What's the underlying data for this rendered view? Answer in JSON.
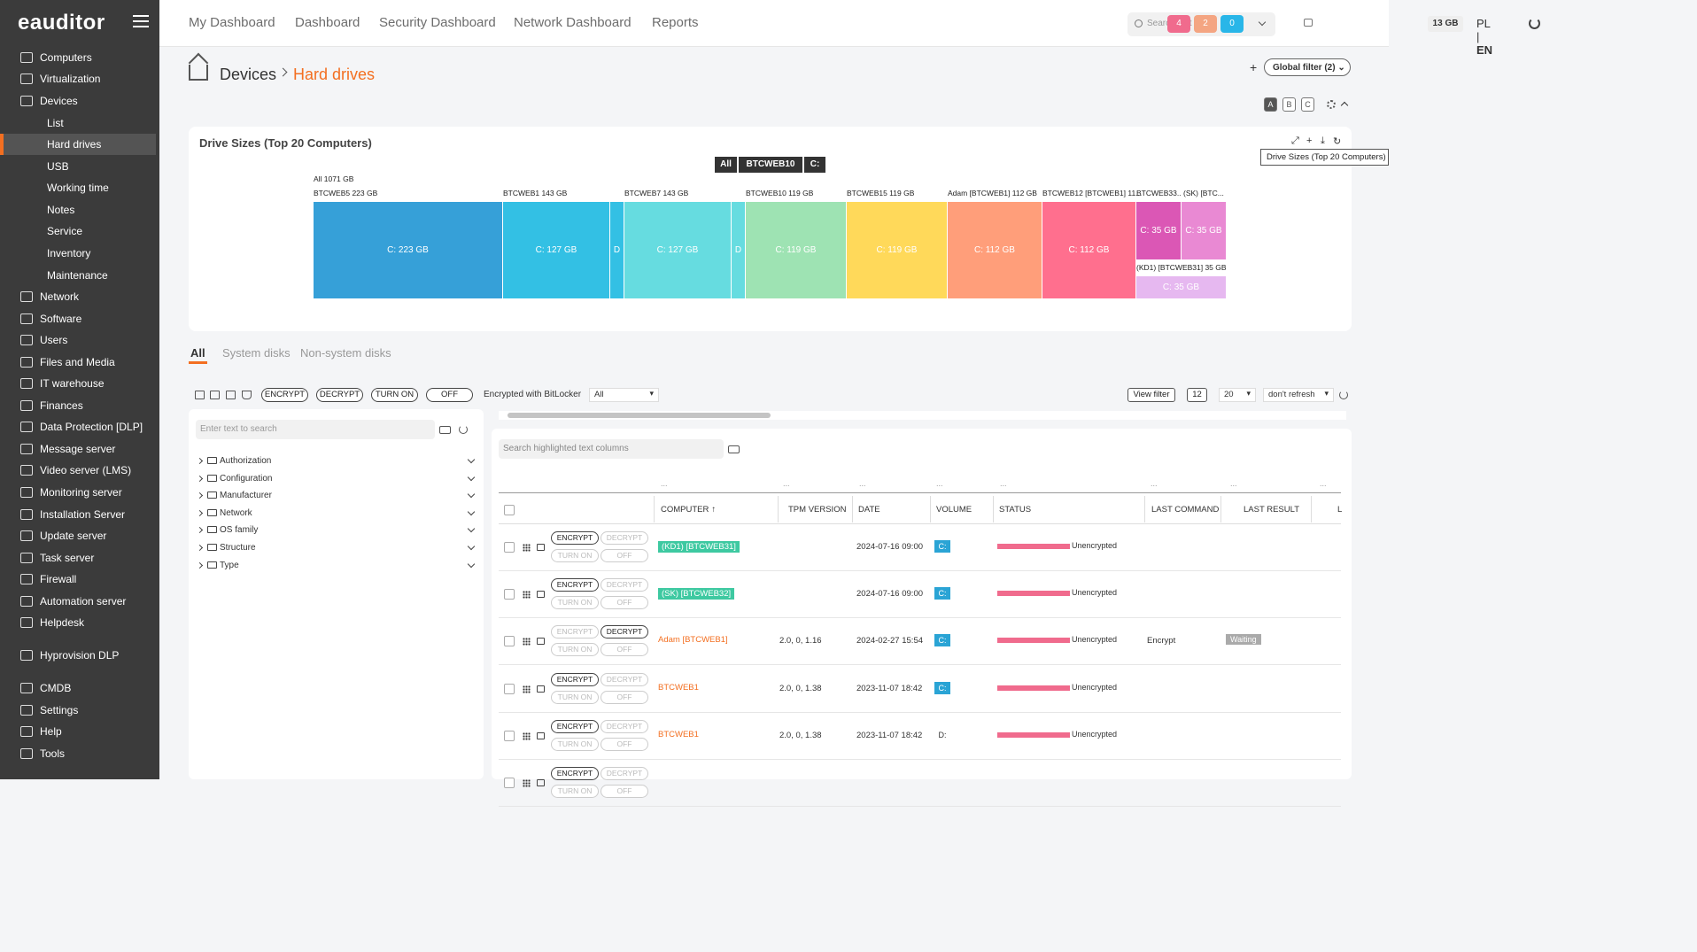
{
  "app": {
    "logo": "eauditor",
    "brand_color": "#f36f21"
  },
  "sidebar": {
    "items": [
      {
        "label": "Computers",
        "icon": "computer-icon"
      },
      {
        "label": "Virtualization",
        "icon": "server-icon"
      },
      {
        "label": "Devices",
        "icon": "devices-icon"
      },
      {
        "label": "List",
        "sub": true
      },
      {
        "label": "Hard drives",
        "sub": true,
        "active": true
      },
      {
        "label": "USB",
        "sub": true
      },
      {
        "label": "Working time",
        "sub": true
      },
      {
        "label": "Notes",
        "sub": true
      },
      {
        "label": "Service",
        "sub": true
      },
      {
        "label": "Inventory",
        "sub": true
      },
      {
        "label": "Maintenance",
        "sub": true
      },
      {
        "label": "Network",
        "icon": "network-icon"
      },
      {
        "label": "Software",
        "icon": "software-icon"
      },
      {
        "label": "Users",
        "icon": "users-icon"
      },
      {
        "label": "Files and Media",
        "icon": "files-icon"
      },
      {
        "label": "IT warehouse",
        "icon": "warehouse-icon"
      },
      {
        "label": "Finances",
        "icon": "finances-icon"
      },
      {
        "label": "Data Protection [DLP]",
        "icon": "shield-icon"
      },
      {
        "label": "Message server",
        "icon": "message-icon"
      },
      {
        "label": "Video server (LMS)",
        "icon": "video-icon"
      },
      {
        "label": "Monitoring server",
        "icon": "monitoring-icon"
      },
      {
        "label": "Installation Server",
        "icon": "installation-icon"
      },
      {
        "label": "Update server",
        "icon": "update-icon"
      },
      {
        "label": "Task server",
        "icon": "task-icon"
      },
      {
        "label": "Firewall",
        "icon": "firewall-icon"
      },
      {
        "label": "Automation server",
        "icon": "automation-icon"
      },
      {
        "label": "Helpdesk",
        "icon": "helpdesk-icon"
      },
      {
        "label": "Hyprovision DLP",
        "icon": "hyprovision-icon"
      },
      {
        "label": "CMDB",
        "icon": "cmdb-icon"
      },
      {
        "label": "Settings",
        "icon": "settings-icon"
      },
      {
        "label": "Help",
        "icon": "help-icon"
      },
      {
        "label": "Tools",
        "icon": "tools-icon"
      }
    ]
  },
  "topnav": {
    "links": [
      "My Dashboard",
      "Dashboard",
      "Security Dashboard",
      "Network Dashboard",
      "Reports"
    ],
    "search_placeholder": "Search text",
    "badges": [
      {
        "value": "4",
        "color": "#f06b8d"
      },
      {
        "value": "2",
        "color": "#f4a582"
      },
      {
        "value": "0",
        "color": "#29b6e8"
      }
    ],
    "storage": "13 GB",
    "lang_pl": "PL",
    "lang_sep": "|",
    "lang_en": "EN"
  },
  "breadcrumb": {
    "parent": "Devices",
    "current": "Hard drives"
  },
  "global_filter": "Global filter (2)",
  "view_modes": [
    "A",
    "B",
    "C"
  ],
  "chart_panel": {
    "title": "Drive Sizes (Top 20 Computers)",
    "tooltip": "Drive Sizes (Top 20 Computers)",
    "path": [
      "All",
      "BTCWEB10",
      "C:"
    ]
  },
  "chart_data": {
    "type": "treemap",
    "root_label": "All 1071 GB",
    "nodes": [
      {
        "group": "BTCWEB5 223 GB",
        "label": "C: 223 GB",
        "value": 223,
        "color": "#36a0d8"
      },
      {
        "group": "BTCWEB1 143 GB",
        "label": "C: 127 GB",
        "value": 127,
        "color": "#33c0e4"
      },
      {
        "group": "BTCWEB1 143 GB",
        "label": "D",
        "value": 16,
        "color": "#33c0e4"
      },
      {
        "group": "BTCWEB7 143 GB",
        "label": "C: 127 GB",
        "value": 127,
        "color": "#66dce0"
      },
      {
        "group": "BTCWEB7 143 GB",
        "label": "D",
        "value": 16,
        "color": "#66dce0"
      },
      {
        "group": "BTCWEB10 119 GB",
        "label": "C: 119 GB",
        "value": 119,
        "color": "#9ee3b3"
      },
      {
        "group": "BTCWEB15 119 GB",
        "label": "C: 119 GB",
        "value": 119,
        "color": "#ffd95a"
      },
      {
        "group": "Adam [BTCWEB1] 112 GB",
        "label": "C: 112 GB",
        "value": 112,
        "color": "#ff9e7a"
      },
      {
        "group": "BTCWEB12 [BTCWEB1] 11...",
        "label": "C: 112 GB",
        "value": 112,
        "color": "#ff6f8e"
      },
      {
        "group": "BTCWEB33...",
        "label": "C: 35 GB",
        "value": 35,
        "color": "#db57b5"
      },
      {
        "group": "(SK) [BTC...",
        "label": "C: 35 GB",
        "value": 35,
        "color": "#e989d3"
      },
      {
        "group": "(KD1) [BTCWEB31] 35 GB",
        "label": "C: 35 GB",
        "value": 35,
        "color": "#e6b8f0"
      }
    ]
  },
  "tabs": [
    "All",
    "System disks",
    "Non-system disks"
  ],
  "toolbar": {
    "encrypt": "ENCRYPT",
    "decrypt": "DECRYPT",
    "turn_on": "TURN ON",
    "off": "OFF",
    "bitlocker_label": "Encrypted with BitLocker",
    "bitlocker_value": "All",
    "view_filter": "View filter",
    "count": "12",
    "page_size": "20",
    "refresh_mode": "don't refresh"
  },
  "filter_panel": {
    "search_placeholder": "Enter text to search",
    "items": [
      "Authorization",
      "Configuration",
      "Manufacturer",
      "Network",
      "OS family",
      "Structure",
      "Type"
    ]
  },
  "table": {
    "search_placeholder": "Search highlighted text columns",
    "dots": "...",
    "columns": [
      "COMPUTER",
      "TPM VERSION",
      "DATE",
      "VOLUME",
      "STATUS",
      "LAST COMMAND",
      "LAST RESULT",
      "L"
    ],
    "rows": [
      {
        "computer": "(KD1) [BTCWEB31]",
        "style": "tag",
        "tpm": "",
        "date": "2024-07-16 09:00",
        "volume": "C:",
        "status": "Unencrypted",
        "last_command": "",
        "last_result": "",
        "enc_active": true,
        "dec_active": false
      },
      {
        "computer": "(SK) [BTCWEB32]",
        "style": "tag",
        "tpm": "",
        "date": "2024-07-16 09:00",
        "volume": "C:",
        "status": "Unencrypted",
        "last_command": "",
        "last_result": "",
        "enc_active": true,
        "dec_active": false
      },
      {
        "computer": "Adam [BTCWEB1]",
        "style": "link",
        "tpm": "2.0, 0, 1.16",
        "date": "2024-02-27 15:54",
        "volume": "C:",
        "status": "Unencrypted",
        "last_command": "Encrypt",
        "last_result": "Waiting",
        "enc_active": false,
        "dec_active": true
      },
      {
        "computer": "BTCWEB1",
        "style": "link",
        "tpm": "2.0, 0, 1.38",
        "date": "2023-11-07 18:42",
        "volume": "C:",
        "status": "Unencrypted",
        "last_command": "",
        "last_result": "",
        "enc_active": true,
        "dec_active": false
      },
      {
        "computer": "BTCWEB1",
        "style": "link",
        "tpm": "2.0, 0, 1.38",
        "date": "2023-11-07 18:42",
        "volume": "D:",
        "status": "Unencrypted",
        "last_command": "",
        "last_result": "",
        "enc_active": true,
        "dec_active": false
      },
      {
        "computer": "",
        "style": "link",
        "tpm": "",
        "date": "",
        "volume": "",
        "status": "",
        "last_command": "",
        "last_result": "",
        "enc_active": true,
        "dec_active": false
      }
    ]
  }
}
